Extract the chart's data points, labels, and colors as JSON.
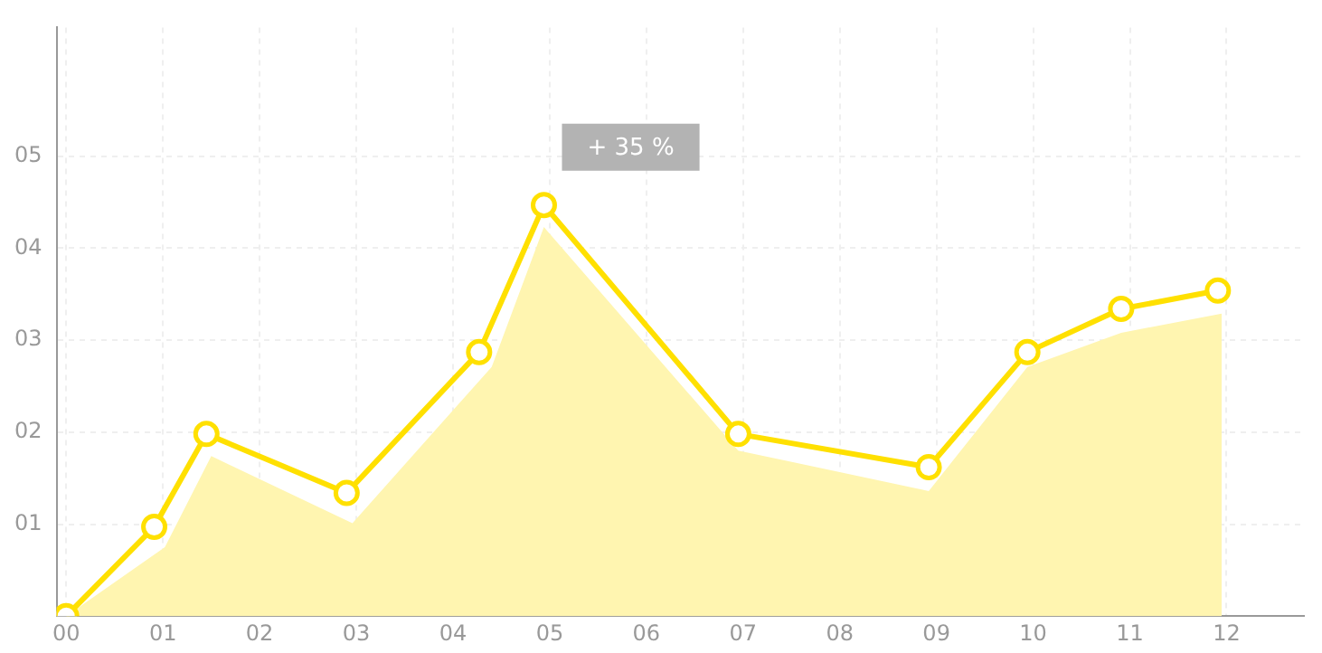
{
  "chart_data": {
    "type": "line",
    "xlim": [
      -0.1,
      12.8
    ],
    "xticks": [
      {
        "value": 0,
        "label": "00"
      },
      {
        "value": 1,
        "label": "01"
      },
      {
        "value": 2,
        "label": "02"
      },
      {
        "value": 3,
        "label": "03"
      },
      {
        "value": 4,
        "label": "04"
      },
      {
        "value": 5,
        "label": "05"
      },
      {
        "value": 6,
        "label": "06"
      },
      {
        "value": 7,
        "label": "07"
      },
      {
        "value": 8,
        "label": "08"
      },
      {
        "value": 9,
        "label": "09"
      },
      {
        "value": 10,
        "label": "10"
      },
      {
        "value": 11,
        "label": "11"
      },
      {
        "value": 12,
        "label": "12"
      }
    ],
    "ylim": [
      0,
      6.4
    ],
    "yticks": [
      {
        "value": 1,
        "label": "01"
      },
      {
        "value": 2,
        "label": "02"
      },
      {
        "value": 3,
        "label": "03"
      },
      {
        "value": 4,
        "label": "04"
      },
      {
        "value": 5,
        "label": "05"
      }
    ],
    "series": [
      {
        "type": "area",
        "color": "#fff5b0",
        "x": [
          0,
          1.02,
          1.5,
          2.96,
          4.4,
          4.94,
          6.95,
          8.92,
          9.94,
          10.91,
          11.95
        ],
        "values": [
          0,
          0.75,
          1.74,
          1.01,
          2.71,
          4.23,
          1.8,
          1.36,
          2.71,
          3.08,
          3.29
        ]
      },
      {
        "marker": "circle",
        "color": "#ffe000",
        "x": [
          0,
          0.91,
          1.45,
          2.9,
          4.27,
          4.94,
          6.95,
          8.92,
          9.94,
          10.91,
          11.91
        ],
        "values": [
          0,
          0.97,
          1.98,
          1.34,
          2.87,
          4.47,
          1.98,
          1.62,
          2.87,
          3.34,
          3.54
        ]
      }
    ],
    "annotations": [
      {
        "text": "+ 35 %",
        "x": 4.94,
        "y": 4.47
      }
    ],
    "grid": true,
    "line_style": "solid"
  }
}
